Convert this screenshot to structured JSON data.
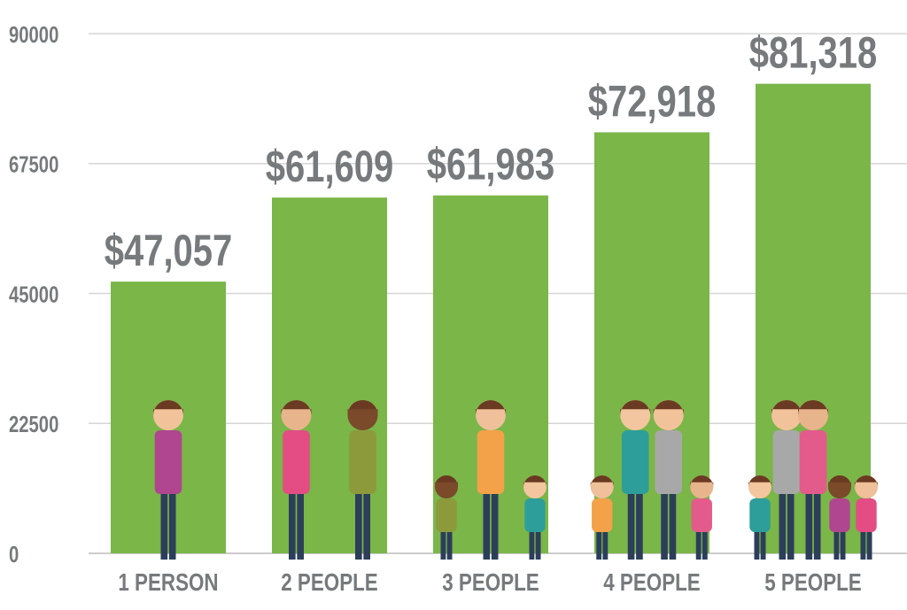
{
  "chart_data": {
    "type": "bar",
    "title": "",
    "xlabel": "",
    "ylabel": "",
    "categories": [
      "1 PERSON",
      "2 PEOPLE",
      "3 PEOPLE",
      "4 PEOPLE",
      "5 PEOPLE"
    ],
    "values": [
      47057,
      61609,
      61983,
      72918,
      81318
    ],
    "value_labels": [
      "$47,057",
      "$61,609",
      "$61,983",
      "$72,918",
      "$81,318"
    ],
    "people_counts": [
      1,
      2,
      3,
      4,
      5
    ],
    "ylim": [
      0,
      90000
    ],
    "yticks": [
      0,
      22500,
      45000,
      67500,
      90000
    ],
    "ytick_labels": [
      "0",
      "22500",
      "45000",
      "67500",
      "90000"
    ],
    "grid": true,
    "legend": "none",
    "colors": {
      "bar": "#7ab648",
      "text": "#767a7c",
      "grid": "#d6d6d6"
    }
  }
}
